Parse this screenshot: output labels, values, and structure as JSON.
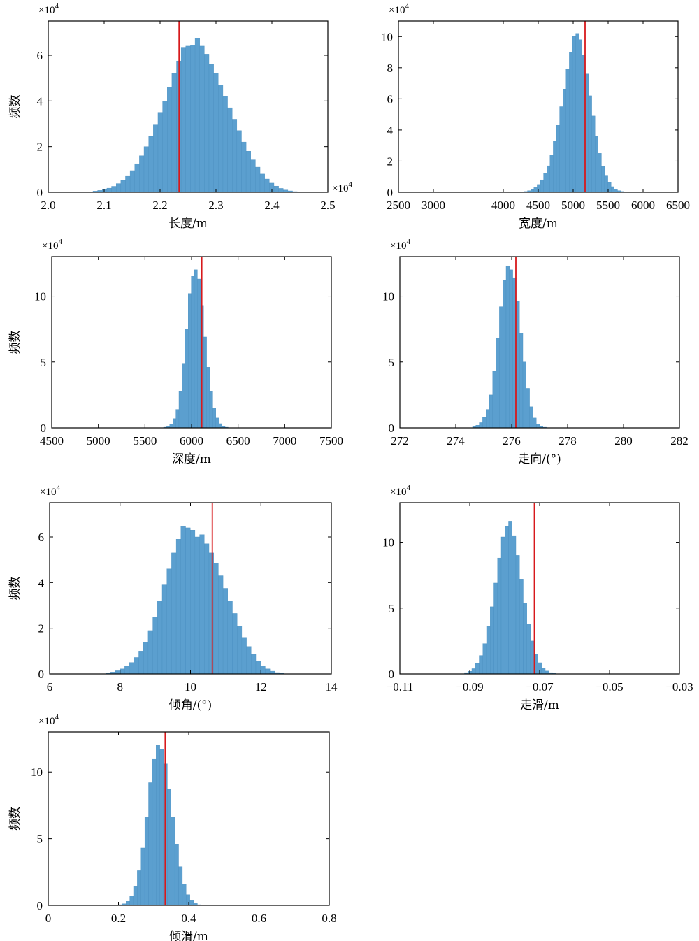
{
  "colors": {
    "bar": "#5b9fcf",
    "bar_edge": "#4a8fc0",
    "marker": "#d7191c"
  },
  "chart_data": [
    {
      "type": "bar",
      "xlabel": "长度/m",
      "ylabel": "频数",
      "y_multiplier": "×10",
      "y_exponent": "4",
      "x_multiplier": "×10",
      "x_exponent": "4",
      "xlim": [
        2.0,
        2.5
      ],
      "ylim": [
        0,
        7.5
      ],
      "xticks": [
        "2.0",
        "2.1",
        "2.2",
        "2.3",
        "2.4",
        "2.5"
      ],
      "xtick_values": [
        2.0,
        2.1,
        2.2,
        2.3,
        2.4,
        2.5
      ],
      "yticks": [
        "0",
        "2",
        "4",
        "6"
      ],
      "ytick_values": [
        0,
        2,
        4,
        6
      ],
      "bin_start": 2.08,
      "bin_width": 0.0083,
      "values": [
        0.05,
        0.08,
        0.12,
        0.18,
        0.26,
        0.38,
        0.52,
        0.7,
        0.95,
        1.25,
        1.6,
        2.0,
        2.45,
        2.95,
        3.5,
        4.0,
        4.6,
        5.2,
        5.75,
        6.35,
        6.4,
        6.45,
        6.75,
        6.4,
        6.05,
        5.6,
        5.2,
        4.7,
        4.2,
        3.7,
        3.2,
        2.7,
        2.2,
        1.8,
        1.42,
        1.1,
        0.8,
        0.58,
        0.4,
        0.27,
        0.17,
        0.1,
        0.06,
        0.03,
        0.02
      ],
      "marker_x": 2.234
    },
    {
      "type": "bar",
      "xlabel": "宽度/m",
      "ylabel": "",
      "y_multiplier": "×10",
      "y_exponent": "4",
      "xlim": [
        2500,
        6500
      ],
      "ylim": [
        0,
        11
      ],
      "xticks": [
        "2500",
        "3000",
        "4000",
        "4500",
        "5000",
        "5500",
        "6000",
        "6500"
      ],
      "xtick_values": [
        2500,
        3000,
        4000,
        4500,
        5000,
        5500,
        6000,
        6500
      ],
      "yticks": [
        "0",
        "2",
        "4",
        "6",
        "8",
        "10"
      ],
      "ytick_values": [
        0,
        2,
        4,
        6,
        8,
        10
      ],
      "bin_start": 4300,
      "bin_width": 46,
      "values": [
        0.05,
        0.1,
        0.18,
        0.3,
        0.5,
        0.8,
        1.2,
        1.7,
        2.4,
        3.3,
        4.3,
        5.5,
        6.6,
        7.9,
        9.0,
        10.0,
        10.2,
        9.8,
        8.8,
        7.6,
        6.2,
        4.9,
        3.6,
        2.5,
        1.65,
        1.05,
        0.62,
        0.36,
        0.2,
        0.1,
        0.05
      ],
      "marker_x": 5170
    },
    {
      "type": "bar",
      "xlabel": "深度/m",
      "ylabel": "频数",
      "y_multiplier": "×10",
      "y_exponent": "4",
      "xlim": [
        4500,
        7500
      ],
      "ylim": [
        0,
        13
      ],
      "xticks": [
        "4500",
        "5000",
        "5500",
        "6000",
        "6500",
        "7000",
        "7500"
      ],
      "xtick_values": [
        4500,
        5000,
        5500,
        6000,
        6500,
        7000,
        7500
      ],
      "yticks": [
        "0",
        "5",
        "10"
      ],
      "ytick_values": [
        0,
        5,
        10
      ],
      "bin_start": 5700,
      "bin_width": 33,
      "values": [
        0.05,
        0.12,
        0.3,
        0.7,
        1.4,
        2.8,
        4.9,
        7.5,
        10.2,
        11.5,
        12.0,
        11.3,
        9.3,
        6.9,
        4.6,
        2.8,
        1.5,
        0.75,
        0.32,
        0.12,
        0.05
      ],
      "marker_x": 6110
    },
    {
      "type": "bar",
      "xlabel": "走向/(°)",
      "ylabel": "",
      "y_multiplier": "×10",
      "y_exponent": "4",
      "xlim": [
        272,
        282
      ],
      "ylim": [
        0,
        13
      ],
      "xticks": [
        "272",
        "274",
        "276",
        "278",
        "280",
        "282"
      ],
      "xtick_values": [
        272,
        274,
        276,
        278,
        280,
        282
      ],
      "yticks": [
        "0",
        "5",
        "10"
      ],
      "ytick_values": [
        0,
        5,
        10
      ],
      "bin_start": 274.6,
      "bin_width": 0.12,
      "values": [
        0.1,
        0.2,
        0.4,
        0.8,
        1.4,
        2.5,
        4.3,
        6.8,
        9.2,
        11.2,
        12.3,
        12.0,
        11.4,
        9.6,
        7.2,
        5.0,
        3.0,
        1.6,
        0.75,
        0.3,
        0.12,
        0.05
      ],
      "marker_x": 276.15
    },
    {
      "type": "bar",
      "xlabel": "倾角/(°)",
      "ylabel": "频数",
      "y_multiplier": "×10",
      "y_exponent": "4",
      "xlim": [
        6,
        14
      ],
      "ylim": [
        0,
        7.5
      ],
      "xticks": [
        "6",
        "8",
        "10",
        "12",
        "14"
      ],
      "xtick_values": [
        6,
        8,
        10,
        12,
        14
      ],
      "yticks": [
        "0",
        "2",
        "4",
        "6"
      ],
      "ytick_values": [
        0,
        2,
        4,
        6
      ],
      "bin_start": 7.6,
      "bin_width": 0.133,
      "values": [
        0.04,
        0.08,
        0.14,
        0.22,
        0.34,
        0.5,
        0.72,
        1.0,
        1.4,
        1.9,
        2.5,
        3.2,
        3.9,
        4.6,
        5.3,
        5.9,
        6.45,
        6.4,
        6.3,
        6.0,
        6.1,
        5.7,
        5.3,
        4.85,
        4.3,
        3.75,
        3.2,
        2.65,
        2.1,
        1.6,
        1.2,
        0.85,
        0.57,
        0.36,
        0.22,
        0.12,
        0.06,
        0.03
      ],
      "marker_x": 10.62
    },
    {
      "type": "bar",
      "xlabel": "走滑/m",
      "ylabel": "",
      "y_multiplier": "×10",
      "y_exponent": "4",
      "xlim": [
        -0.11,
        -0.03
      ],
      "ylim": [
        0,
        13
      ],
      "xticks": [
        "−0.11",
        "−0.09",
        "−0.07",
        "−0.05",
        "−0.03"
      ],
      "xtick_values": [
        -0.11,
        -0.09,
        -0.07,
        -0.05,
        -0.03
      ],
      "yticks": [
        "0",
        "5",
        "10"
      ],
      "ytick_values": [
        0,
        5,
        10
      ],
      "bin_start": -0.0915,
      "bin_width": 0.00105,
      "values": [
        0.1,
        0.2,
        0.4,
        0.8,
        1.4,
        2.3,
        3.6,
        5.1,
        6.9,
        8.8,
        10.4,
        11.2,
        11.6,
        10.5,
        9.0,
        7.2,
        5.4,
        3.8,
        2.5,
        1.5,
        0.85,
        0.45,
        0.22,
        0.1,
        0.05
      ],
      "marker_x": -0.0715
    },
    {
      "type": "bar",
      "xlabel": "倾滑/m",
      "ylabel": "频数",
      "y_multiplier": "×10",
      "y_exponent": "4",
      "xlim": [
        0,
        0.8
      ],
      "ylim": [
        0,
        13
      ],
      "xticks": [
        "0",
        "0.2",
        "0.4",
        "0.6",
        "0.8"
      ],
      "xtick_values": [
        0,
        0.2,
        0.4,
        0.6,
        0.8
      ],
      "yticks": [
        "0",
        "5",
        "10"
      ],
      "ytick_values": [
        0,
        5,
        10
      ],
      "bin_start": 0.2,
      "bin_width": 0.0107,
      "values": [
        0.05,
        0.12,
        0.3,
        0.7,
        1.4,
        2.6,
        4.3,
        6.6,
        9.2,
        11.0,
        12.0,
        11.7,
        10.6,
        8.7,
        6.6,
        4.6,
        2.9,
        1.6,
        0.8,
        0.35,
        0.14,
        0.05
      ],
      "marker_x": 0.333
    }
  ]
}
